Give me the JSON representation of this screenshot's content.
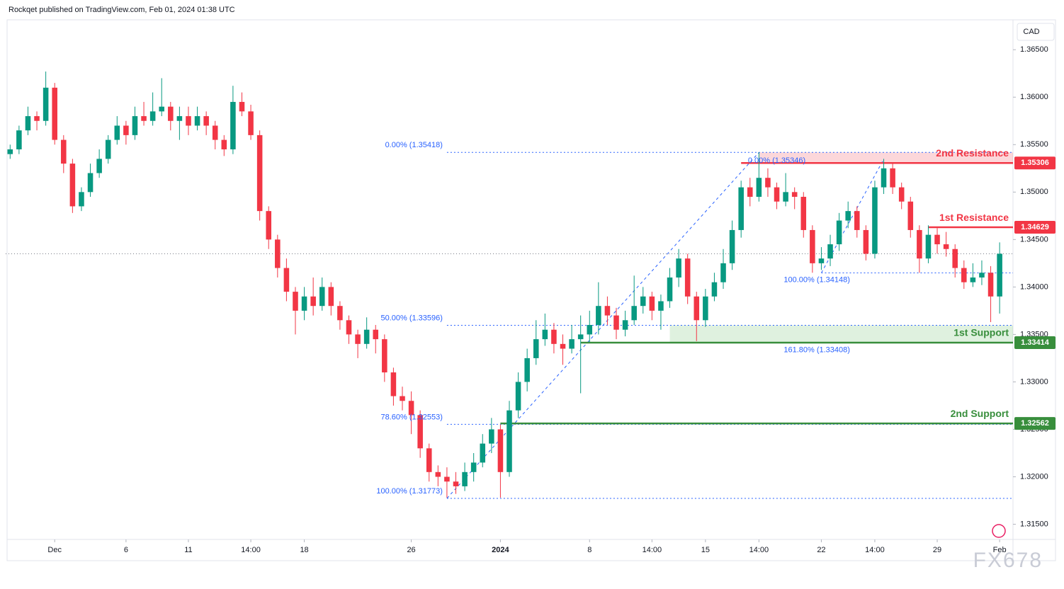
{
  "chart_data": {
    "type": "candlestick",
    "header": "Rockqet published on TradingView.com, Feb 01, 2024 01:38 UTC",
    "currency": "CAD",
    "watermark": "FX678",
    "up_color": "#089981",
    "down_color": "#f23645",
    "xlim": [
      -0.5,
      112.5
    ],
    "xticks": [
      {
        "value": 5,
        "label": "Dec"
      },
      {
        "value": 13,
        "label": "6"
      },
      {
        "value": 20,
        "label": "11"
      },
      {
        "value": 27,
        "label": "14:00"
      },
      {
        "value": 33,
        "label": "18"
      },
      {
        "value": 45,
        "label": "26"
      },
      {
        "value": 55,
        "label": "2024"
      },
      {
        "value": 65,
        "label": "8"
      },
      {
        "value": 72,
        "label": "14:00"
      },
      {
        "value": 78,
        "label": "15"
      },
      {
        "value": 84,
        "label": "14:00"
      },
      {
        "value": 91,
        "label": "22"
      },
      {
        "value": 97,
        "label": "14:00"
      },
      {
        "value": 104,
        "label": "29"
      },
      {
        "value": 111,
        "label": "Feb"
      }
    ],
    "ylim": [
      1.3134,
      1.368
    ],
    "yticks": [
      {
        "value": 1.365,
        "label": "1.36500"
      },
      {
        "value": 1.36,
        "label": "1.36000"
      },
      {
        "value": 1.355,
        "label": "1.35500"
      },
      {
        "value": 1.35,
        "label": "1.35000"
      },
      {
        "value": 1.345,
        "label": "1.34500"
      },
      {
        "value": 1.34,
        "label": "1.34000"
      },
      {
        "value": 1.335,
        "label": "1.33500"
      },
      {
        "value": 1.33,
        "label": "1.33000"
      },
      {
        "value": 1.325,
        "label": "1.32500"
      },
      {
        "value": 1.32,
        "label": "1.32000"
      },
      {
        "value": 1.315,
        "label": "1.31500"
      }
    ],
    "levels": [
      {
        "label": "2nd Resistance",
        "value": 1.35306,
        "color": "#f23645",
        "start": 82
      },
      {
        "label": "1st Resistance",
        "value": 1.34629,
        "color": "#f23645",
        "start": 103
      },
      {
        "label": "1st Support",
        "value": 1.33414,
        "color": "#388e3c",
        "start": 64
      },
      {
        "label": "2nd Support",
        "value": 1.32562,
        "color": "#388e3c",
        "start": 55
      }
    ],
    "fib1": [
      {
        "text": "0.00% (1.35418)",
        "value": 1.35418
      },
      {
        "text": "50.00% (1.33596)",
        "value": 1.33596
      },
      {
        "text": "78.60% (1.32553)",
        "value": 1.32553
      },
      {
        "text": "100.00% (1.31773)",
        "value": 1.31773
      }
    ],
    "fib2": [
      {
        "text": "0.00% (1.35346)",
        "value": 1.35346
      },
      {
        "text": "100.00% (1.34148)",
        "value": 1.34148
      },
      {
        "text": "161.80% (1.33408)",
        "value": 1.33408
      }
    ],
    "candles": [
      [
        1.354,
        1.355,
        1.3535,
        1.3545
      ],
      [
        1.3545,
        1.357,
        1.354,
        1.3565
      ],
      [
        1.3565,
        1.359,
        1.356,
        1.358
      ],
      [
        1.358,
        1.3585,
        1.3565,
        1.3575
      ],
      [
        1.3575,
        1.3627,
        1.357,
        1.361
      ],
      [
        1.361,
        1.3615,
        1.355,
        1.3555
      ],
      [
        1.3555,
        1.356,
        1.352,
        1.353
      ],
      [
        1.353,
        1.3535,
        1.3478,
        1.3485
      ],
      [
        1.3485,
        1.3505,
        1.348,
        1.35
      ],
      [
        1.35,
        1.353,
        1.3495,
        1.352
      ],
      [
        1.352,
        1.3545,
        1.3515,
        1.3535
      ],
      [
        1.3535,
        1.356,
        1.353,
        1.3555
      ],
      [
        1.3555,
        1.358,
        1.355,
        1.357
      ],
      [
        1.357,
        1.3575,
        1.355,
        1.356
      ],
      [
        1.356,
        1.359,
        1.3555,
        1.358
      ],
      [
        1.358,
        1.3595,
        1.357,
        1.3575
      ],
      [
        1.3575,
        1.3605,
        1.357,
        1.3585
      ],
      [
        1.3585,
        1.362,
        1.358,
        1.359
      ],
      [
        1.359,
        1.3595,
        1.3565,
        1.3575
      ],
      [
        1.3575,
        1.359,
        1.3555,
        1.358
      ],
      [
        1.358,
        1.359,
        1.356,
        1.357
      ],
      [
        1.357,
        1.359,
        1.3565,
        1.358
      ],
      [
        1.358,
        1.3585,
        1.356,
        1.357
      ],
      [
        1.357,
        1.3575,
        1.3545,
        1.3555
      ],
      [
        1.3555,
        1.356,
        1.3538,
        1.3545
      ],
      [
        1.3545,
        1.3612,
        1.354,
        1.3595
      ],
      [
        1.3595,
        1.3605,
        1.358,
        1.3585
      ],
      [
        1.3585,
        1.3592,
        1.3555,
        1.356
      ],
      [
        1.356,
        1.3565,
        1.347,
        1.348
      ],
      [
        1.348,
        1.3485,
        1.344,
        1.345
      ],
      [
        1.345,
        1.3455,
        1.341,
        1.342
      ],
      [
        1.342,
        1.343,
        1.3385,
        1.3395
      ],
      [
        1.3395,
        1.34,
        1.335,
        1.3375
      ],
      [
        1.3375,
        1.34,
        1.3365,
        1.339
      ],
      [
        1.339,
        1.341,
        1.337,
        1.338
      ],
      [
        1.338,
        1.341,
        1.3375,
        1.34
      ],
      [
        1.34,
        1.3405,
        1.337,
        1.338
      ],
      [
        1.338,
        1.3385,
        1.3355,
        1.3365
      ],
      [
        1.3365,
        1.337,
        1.334,
        1.335
      ],
      [
        1.335,
        1.3355,
        1.3325,
        1.334
      ],
      [
        1.334,
        1.3368,
        1.3335,
        1.3355
      ],
      [
        1.3355,
        1.336,
        1.333,
        1.3345
      ],
      [
        1.3345,
        1.335,
        1.33,
        1.331
      ],
      [
        1.331,
        1.3315,
        1.3275,
        1.3285
      ],
      [
        1.3285,
        1.3295,
        1.327,
        1.328
      ],
      [
        1.328,
        1.329,
        1.3245,
        1.3265
      ],
      [
        1.3265,
        1.327,
        1.322,
        1.323
      ],
      [
        1.323,
        1.3235,
        1.3195,
        1.3205
      ],
      [
        1.3205,
        1.3212,
        1.319,
        1.32
      ],
      [
        1.32,
        1.321,
        1.3178,
        1.3195
      ],
      [
        1.3195,
        1.3205,
        1.3182,
        1.319
      ],
      [
        1.319,
        1.3215,
        1.3185,
        1.3205
      ],
      [
        1.3205,
        1.3225,
        1.3195,
        1.3215
      ],
      [
        1.3215,
        1.3245,
        1.321,
        1.3235
      ],
      [
        1.3235,
        1.3262,
        1.3225,
        1.325
      ],
      [
        1.325,
        1.3255,
        1.3178,
        1.3205
      ],
      [
        1.3205,
        1.328,
        1.32,
        1.327
      ],
      [
        1.327,
        1.331,
        1.3262,
        1.33
      ],
      [
        1.33,
        1.3335,
        1.329,
        1.3325
      ],
      [
        1.3325,
        1.3365,
        1.3318,
        1.3345
      ],
      [
        1.3345,
        1.3372,
        1.3338,
        1.3355
      ],
      [
        1.3355,
        1.3362,
        1.333,
        1.334
      ],
      [
        1.334,
        1.335,
        1.3318,
        1.3335
      ],
      [
        1.3335,
        1.336,
        1.333,
        1.3345
      ],
      [
        1.3345,
        1.337,
        1.3288,
        1.335
      ],
      [
        1.335,
        1.3375,
        1.3342,
        1.336
      ],
      [
        1.336,
        1.3405,
        1.335,
        1.338
      ],
      [
        1.338,
        1.339,
        1.336,
        1.337
      ],
      [
        1.337,
        1.3378,
        1.3345,
        1.3355
      ],
      [
        1.3355,
        1.3375,
        1.3348,
        1.3365
      ],
      [
        1.3365,
        1.3412,
        1.336,
        1.338
      ],
      [
        1.338,
        1.34,
        1.3372,
        1.339
      ],
      [
        1.339,
        1.3395,
        1.3365,
        1.3375
      ],
      [
        1.3375,
        1.3392,
        1.3355,
        1.3385
      ],
      [
        1.3385,
        1.342,
        1.3378,
        1.341
      ],
      [
        1.341,
        1.344,
        1.34,
        1.343
      ],
      [
        1.343,
        1.3435,
        1.3382,
        1.339
      ],
      [
        1.339,
        1.3395,
        1.3343,
        1.3365
      ],
      [
        1.3365,
        1.3398,
        1.3358,
        1.339
      ],
      [
        1.339,
        1.3415,
        1.3385,
        1.3405
      ],
      [
        1.3405,
        1.344,
        1.3398,
        1.3425
      ],
      [
        1.3425,
        1.347,
        1.3418,
        1.346
      ],
      [
        1.346,
        1.3512,
        1.3452,
        1.3505
      ],
      [
        1.3505,
        1.3515,
        1.3485,
        1.3495
      ],
      [
        1.3495,
        1.3542,
        1.349,
        1.3515
      ],
      [
        1.3515,
        1.3525,
        1.3495,
        1.3505
      ],
      [
        1.3505,
        1.351,
        1.3482,
        1.349
      ],
      [
        1.349,
        1.352,
        1.3485,
        1.35
      ],
      [
        1.35,
        1.3505,
        1.3482,
        1.3495
      ],
      [
        1.3495,
        1.35,
        1.3452,
        1.346
      ],
      [
        1.346,
        1.3465,
        1.3415,
        1.3425
      ],
      [
        1.3425,
        1.3442,
        1.3418,
        1.343
      ],
      [
        1.343,
        1.3455,
        1.3422,
        1.3445
      ],
      [
        1.3445,
        1.3478,
        1.3438,
        1.347
      ],
      [
        1.347,
        1.349,
        1.3462,
        1.348
      ],
      [
        1.348,
        1.3485,
        1.3452,
        1.346
      ],
      [
        1.346,
        1.3465,
        1.3428,
        1.3435
      ],
      [
        1.3435,
        1.3512,
        1.343,
        1.3505
      ],
      [
        1.3505,
        1.3535,
        1.3498,
        1.3525
      ],
      [
        1.3525,
        1.353,
        1.3498,
        1.3505
      ],
      [
        1.3505,
        1.351,
        1.3482,
        1.349
      ],
      [
        1.349,
        1.3495,
        1.3452,
        1.346
      ],
      [
        1.346,
        1.3465,
        1.3415,
        1.343
      ],
      [
        1.343,
        1.3465,
        1.3425,
        1.3455
      ],
      [
        1.3455,
        1.3462,
        1.3435,
        1.3445
      ],
      [
        1.3445,
        1.3458,
        1.3432,
        1.344
      ],
      [
        1.344,
        1.3445,
        1.341,
        1.342
      ],
      [
        1.342,
        1.3428,
        1.3398,
        1.3405
      ],
      [
        1.3405,
        1.3425,
        1.34,
        1.341
      ],
      [
        1.341,
        1.3428,
        1.3402,
        1.3415
      ],
      [
        1.3415,
        1.3422,
        1.3363,
        1.339
      ],
      [
        1.339,
        1.3447,
        1.3372,
        1.3435
      ]
    ]
  }
}
